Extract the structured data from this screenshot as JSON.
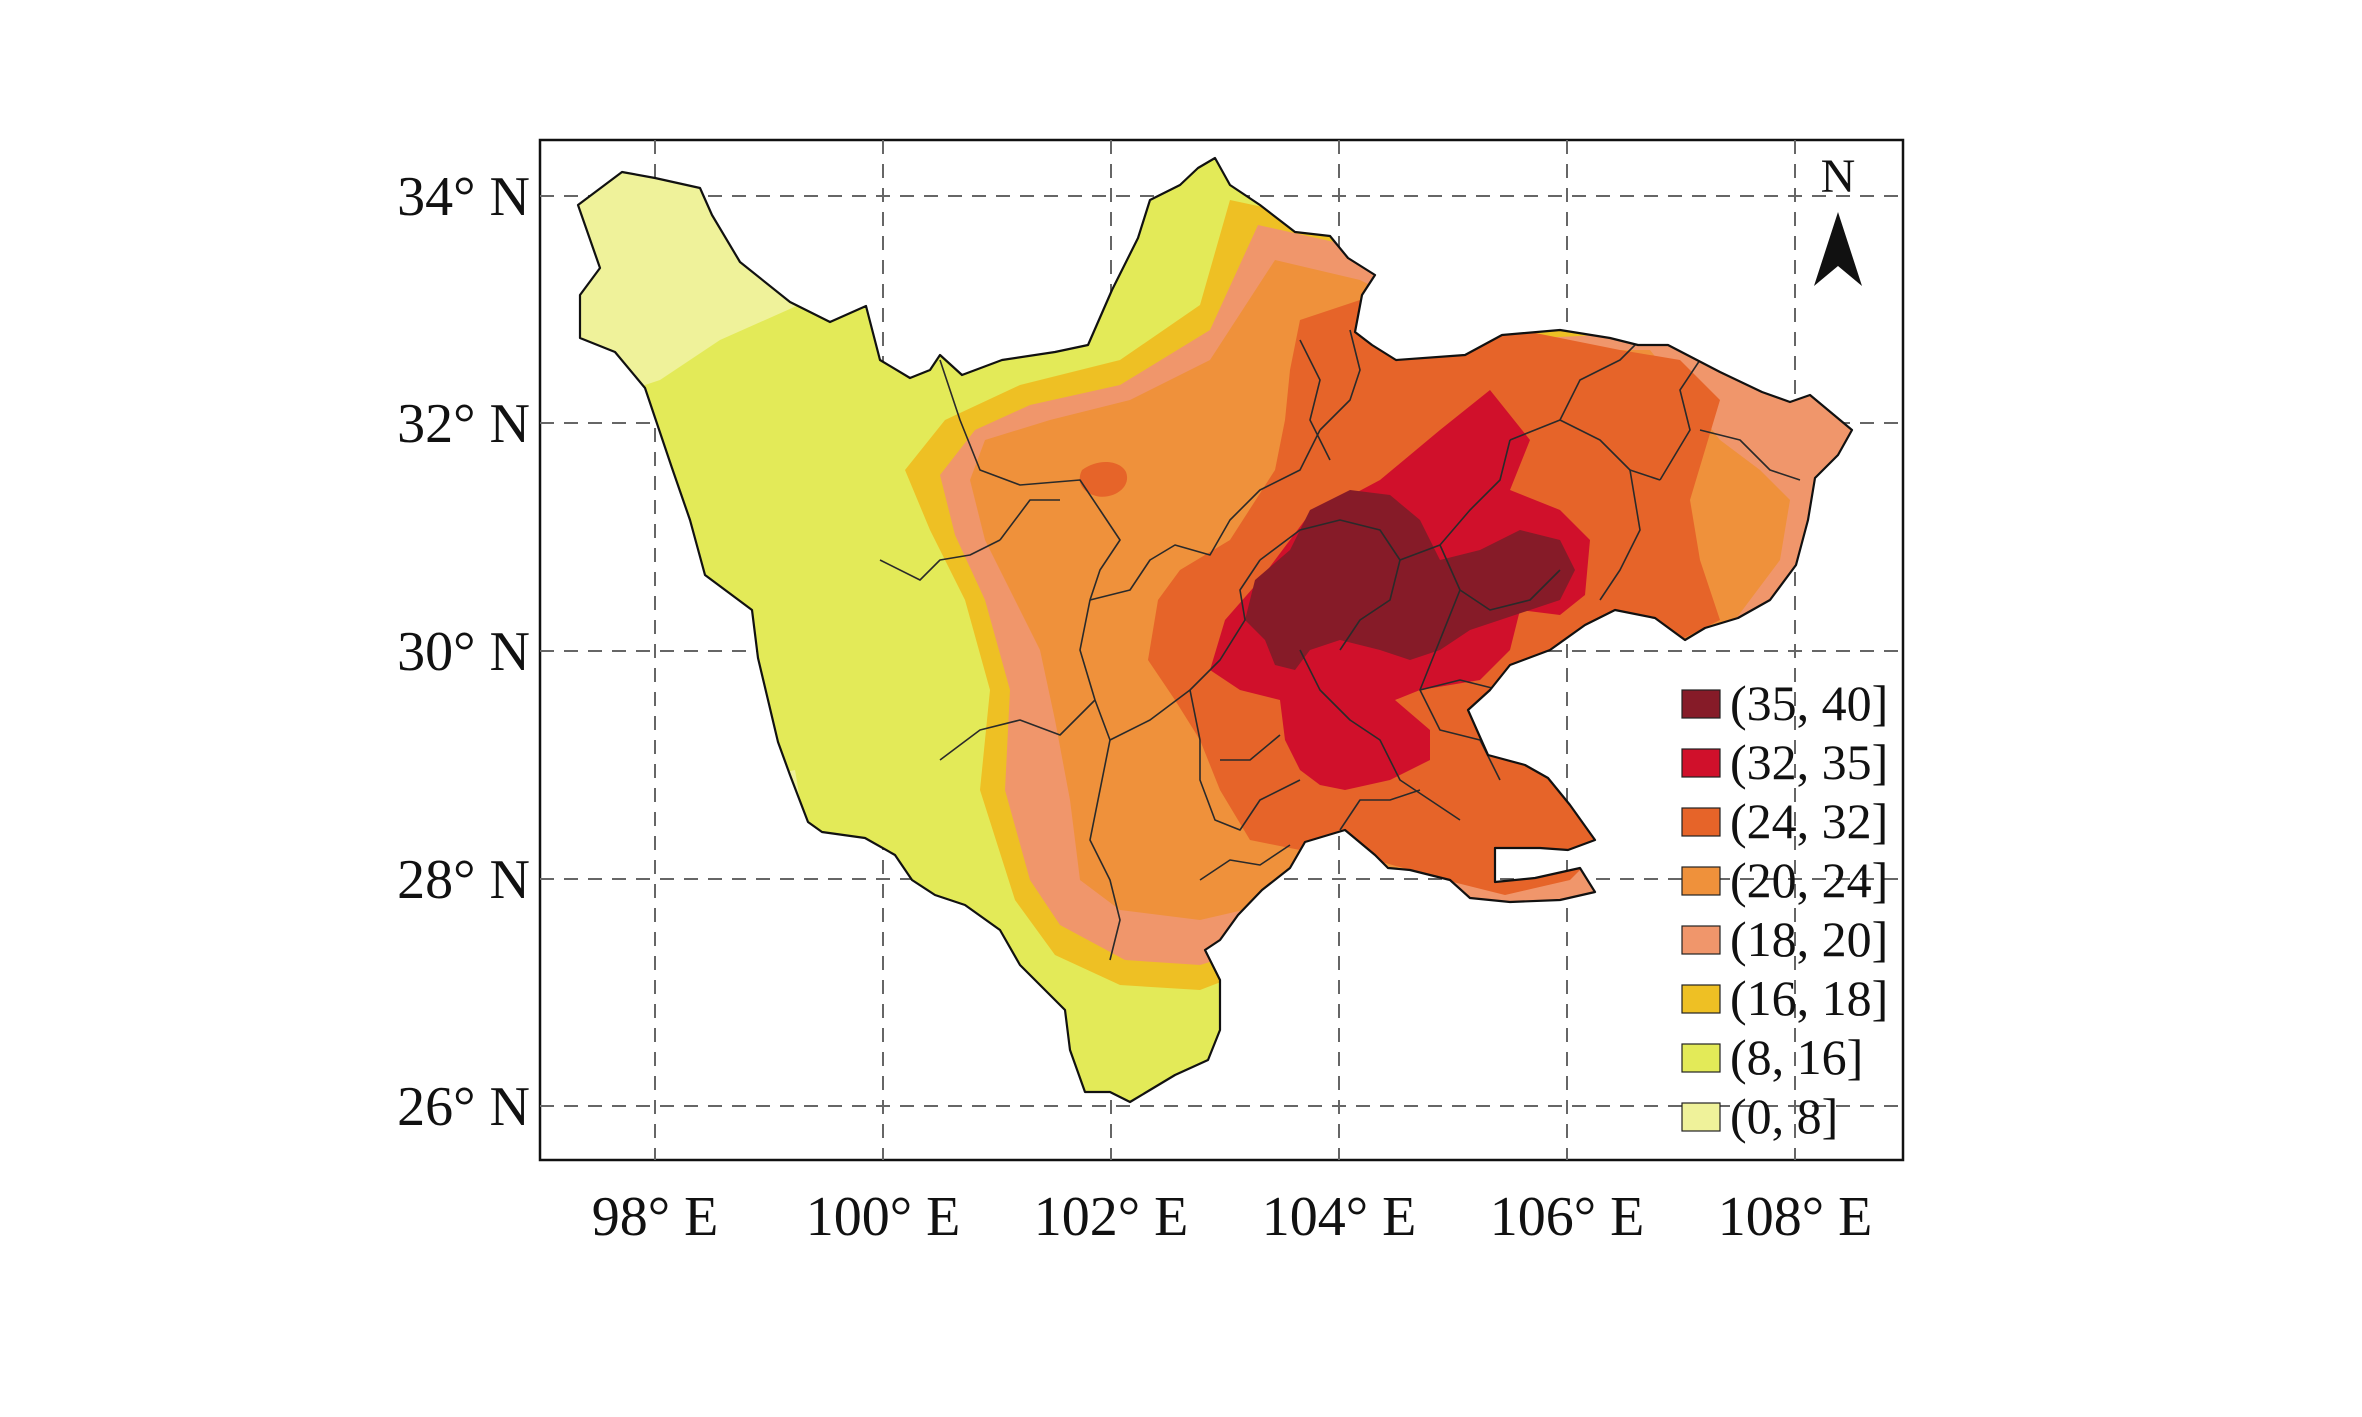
{
  "map": {
    "x_ticks": [
      "98° E",
      "100° E",
      "102° E",
      "104° E",
      "106° E",
      "108° E"
    ],
    "y_ticks": [
      "34° N",
      "32° N",
      "30° N",
      "28° N",
      "26° N"
    ],
    "north_label": "N",
    "legend": [
      {
        "label": "(35, 40]",
        "color": "#861b28"
      },
      {
        "label": "(32, 35]",
        "color": "#d0102b"
      },
      {
        "label": "(24, 32]",
        "color": "#e66429"
      },
      {
        "label": "(20, 24]",
        "color": "#ef913b"
      },
      {
        "label": "(18, 20]",
        "color": "#f0966b"
      },
      {
        "label": "(16, 18]",
        "color": "#eec024"
      },
      {
        "label": "(8, 16]",
        "color": "#e3ea58"
      },
      {
        "label": "(0, 8]",
        "color": "#eff29a"
      }
    ]
  }
}
